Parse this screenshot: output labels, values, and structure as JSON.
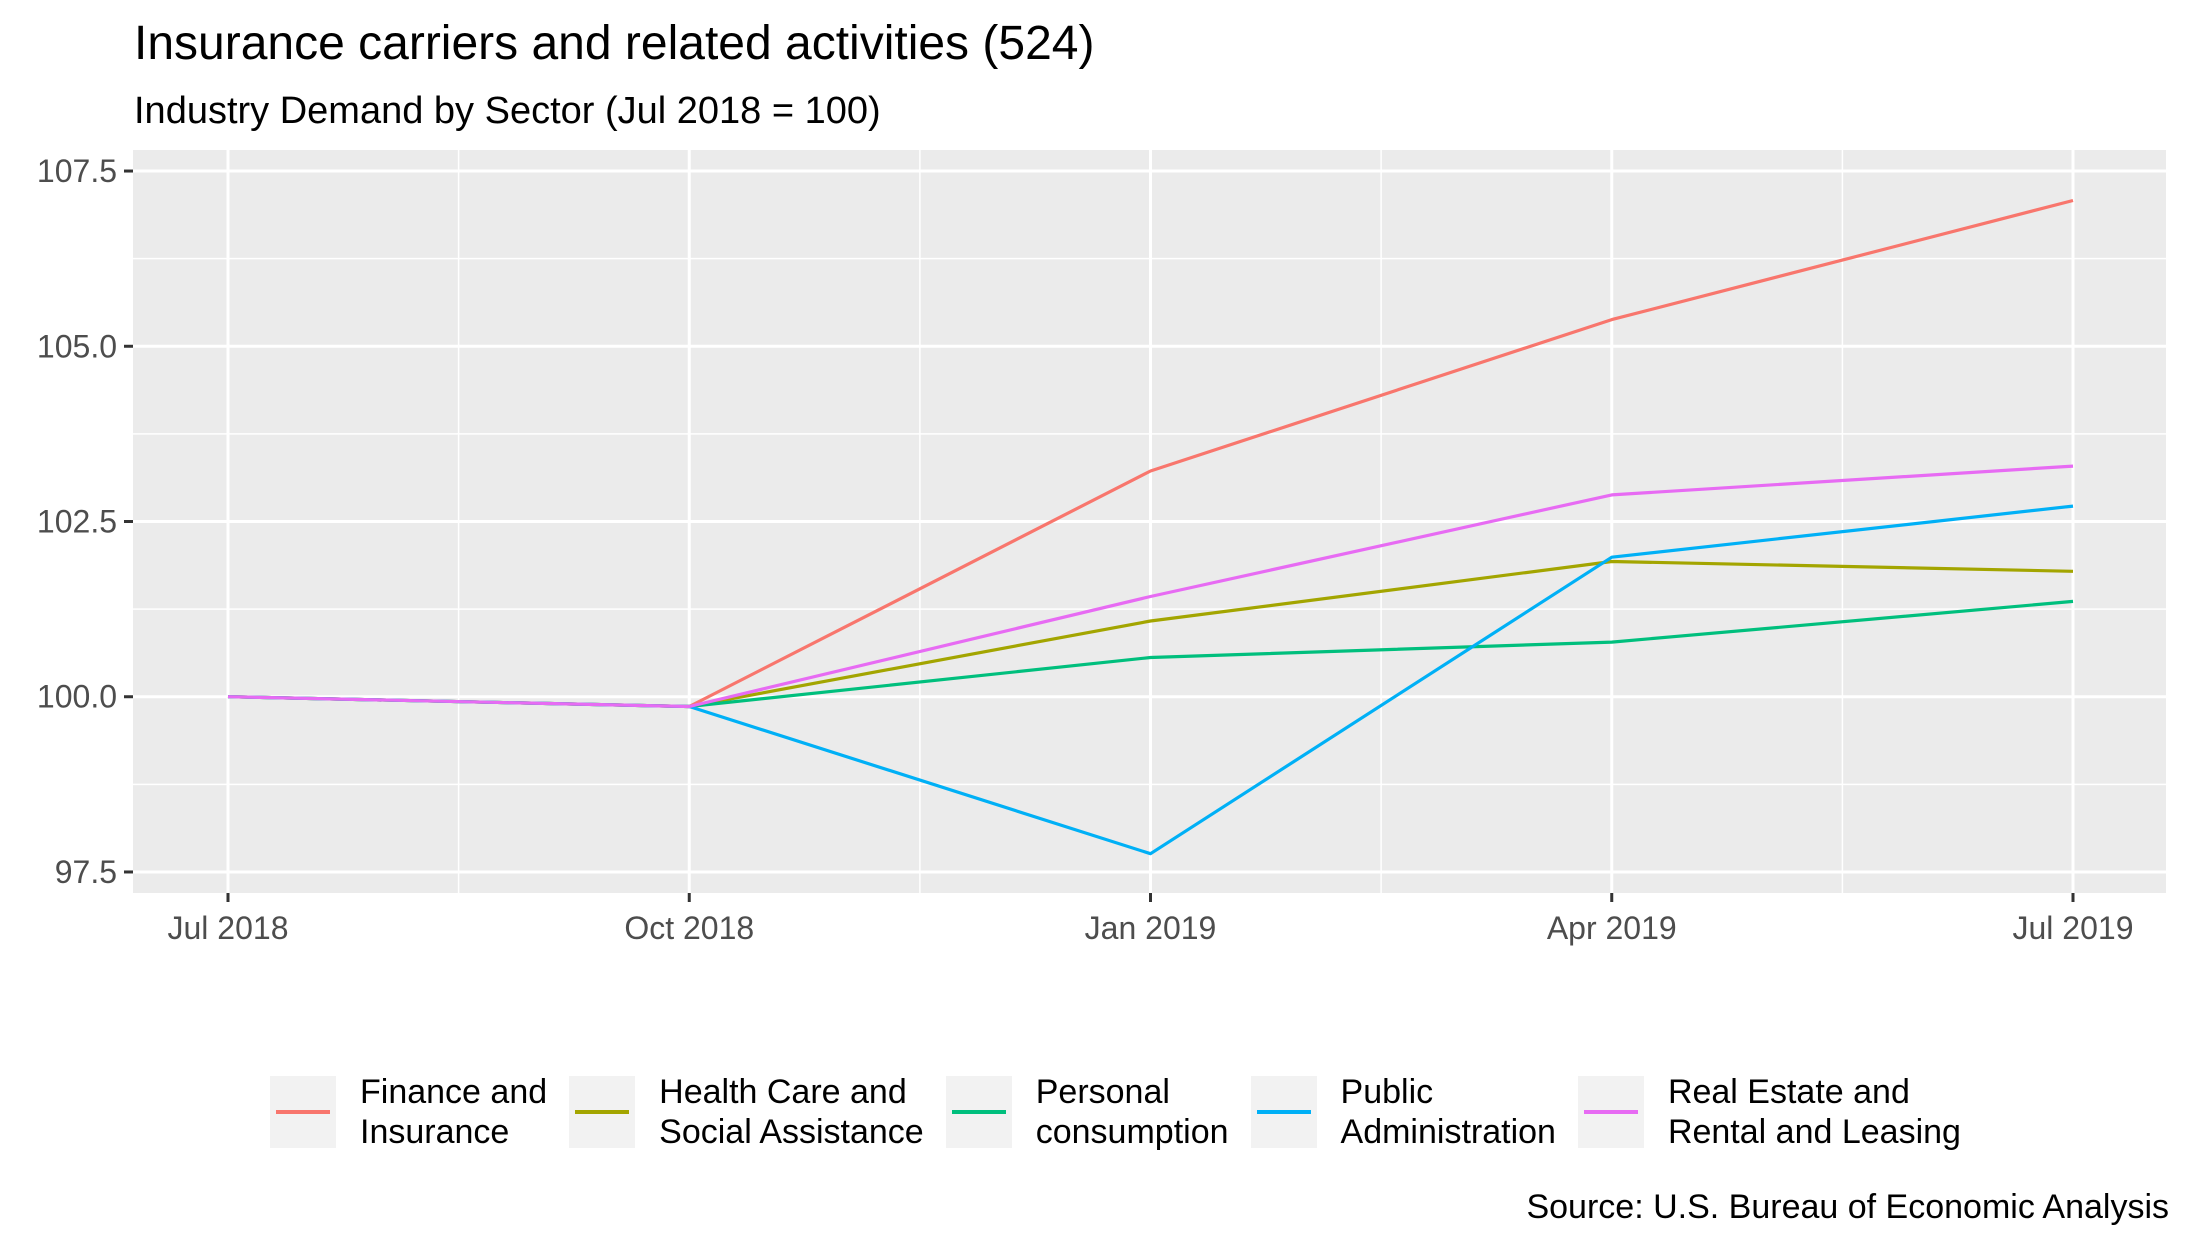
{
  "chart_data": {
    "type": "line",
    "title": "Insurance carriers and related activities (524)",
    "subtitle": "Industry Demand by Sector (Jul 2018 = 100)",
    "caption": "Source: U.S. Bureau of Economic Analysis",
    "xlabel": "",
    "ylabel": "",
    "x": [
      "Jul 2018",
      "Oct 2018",
      "Jan 2019",
      "Apr 2019",
      "Jul 2019"
    ],
    "x_tick_labels": [
      "Jul 2018",
      "Oct 2018",
      "Jan 2019",
      "Apr 2019",
      "Jul 2019"
    ],
    "y_tick_labels": [
      "97.5",
      "100.0",
      "102.5",
      "105.0",
      "107.5"
    ],
    "y_ticks": [
      97.5,
      100.0,
      102.5,
      105.0,
      107.5
    ],
    "ylim": [
      97.2,
      107.8
    ],
    "grid": true,
    "legend_position": "bottom",
    "series": [
      {
        "name": "Finance and\nInsurance",
        "color": "#F8766D",
        "values": [
          100.0,
          99.86,
          103.22,
          105.38,
          107.08
        ]
      },
      {
        "name": "Health Care and\nSocial Assistance",
        "color": "#A3A500",
        "values": [
          100.0,
          99.86,
          101.08,
          101.93,
          101.79
        ]
      },
      {
        "name": "Personal\nconsumption",
        "color": "#00BF7D",
        "values": [
          100.0,
          99.86,
          100.56,
          100.78,
          101.36
        ]
      },
      {
        "name": "Public\nAdministration",
        "color": "#00B0F6",
        "values": [
          100.0,
          99.86,
          97.76,
          101.99,
          102.72
        ]
      },
      {
        "name": "Real Estate and\nRental and Leasing",
        "color": "#E76BF3",
        "values": [
          100.0,
          99.86,
          101.43,
          102.88,
          103.29
        ]
      }
    ]
  }
}
